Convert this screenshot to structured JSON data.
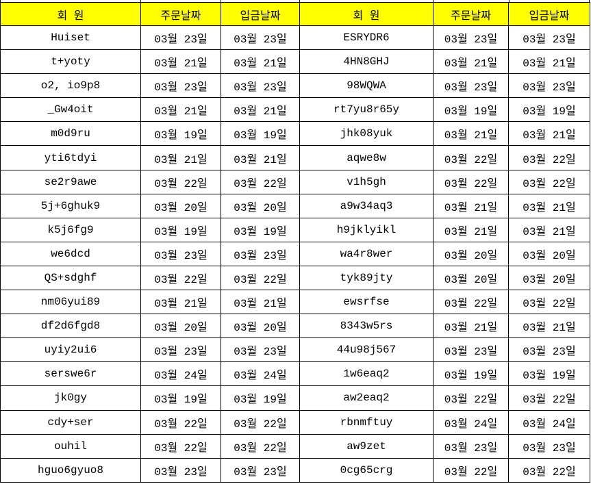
{
  "colors": {
    "header_bg": "#FFFF00",
    "border": "#000000",
    "text": "#000000",
    "page_bg": "#FFFFFF"
  },
  "table": {
    "columns": [
      {
        "key": "member_left",
        "label": "회 원"
      },
      {
        "key": "order_left",
        "label": "주문날짜"
      },
      {
        "key": "deposit_left",
        "label": "입금날짜"
      },
      {
        "key": "member_right",
        "label": "회 원"
      },
      {
        "key": "order_right",
        "label": "주문날짜"
      },
      {
        "key": "deposit_right",
        "label": "입금날짜"
      }
    ],
    "rows": [
      [
        "Huiset",
        "03월 23일",
        "03월 23일",
        "ESRYDR6",
        "03월 23일",
        "03월 23일"
      ],
      [
        "t+yoty",
        "03월 21일",
        "03월 21일",
        "4HN8GHJ",
        "03월 21일",
        "03월 21일"
      ],
      [
        "o2, io9p8",
        "03월 23일",
        "03월 23일",
        "98WQWA",
        "03월 23일",
        "03월 23일"
      ],
      [
        "_Gw4oit",
        "03월 21일",
        "03월 21일",
        "rt7yu8r65y",
        "03월 19일",
        "03월 19일"
      ],
      [
        "m0d9ru",
        "03월 19일",
        "03월 19일",
        "jhk08yuk",
        "03월 21일",
        "03월 21일"
      ],
      [
        "yti6tdyi",
        "03월 21일",
        "03월 21일",
        "aqwe8w",
        "03월 22일",
        "03월 22일"
      ],
      [
        "se2r9awe",
        "03월 22일",
        "03월 22일",
        "v1h5gh",
        "03월 22일",
        "03월 22일"
      ],
      [
        "5j+6ghuk9",
        "03월 20일",
        "03월 20일",
        "a9w34aq3",
        "03월 21일",
        "03월 21일"
      ],
      [
        "k5j6fg9",
        "03월 19일",
        "03월 19일",
        "h9jklyikl",
        "03월 21일",
        "03월 21일"
      ],
      [
        "we6dcd",
        "03월 23일",
        "03월 23일",
        "wa4r8wer",
        "03월 20일",
        "03월 20일"
      ],
      [
        "QS+sdghf",
        "03월 22일",
        "03월 22일",
        "tyk89jty",
        "03월 20일",
        "03월 20일"
      ],
      [
        "nm06yui89",
        "03월 21일",
        "03월 21일",
        "ewsrfse",
        "03월 22일",
        "03월 22일"
      ],
      [
        "df2d6fgd8",
        "03월 20일",
        "03월 20일",
        "8343w5rs",
        "03월 21일",
        "03월 21일"
      ],
      [
        "uyiy2ui6",
        "03월 23일",
        "03월 23일",
        "44u98j567",
        "03월 23일",
        "03월 23일"
      ],
      [
        "serswe6r",
        "03월 24일",
        "03월 24일",
        "1w6eaq2",
        "03월 19일",
        "03월 19일"
      ],
      [
        "jk0gy",
        "03월 19일",
        "03월 19일",
        "aw2eaq2",
        "03월 22일",
        "03월 22일"
      ],
      [
        "cdy+ser",
        "03월 22일",
        "03월 22일",
        "rbnmftuy",
        "03월 24일",
        "03월 24일"
      ],
      [
        "ouhil",
        "03월 22일",
        "03월 22일",
        "aw9zet",
        "03월 23일",
        "03월 23일"
      ],
      [
        "hguo6gyuo8",
        "03월 23일",
        "03월 23일",
        "0cg65crg",
        "03월 22일",
        "03월 22일"
      ]
    ]
  }
}
